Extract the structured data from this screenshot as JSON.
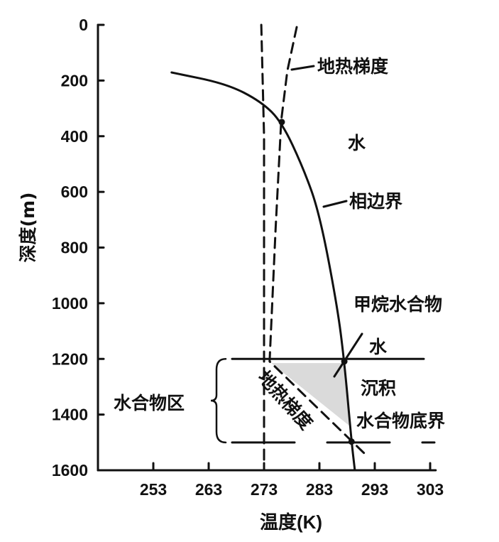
{
  "chart_data": {
    "type": "line",
    "title": "",
    "xlabel": "温度(K)",
    "ylabel": "深度(m)",
    "xlim": [
      243,
      304
    ],
    "ylim": [
      0,
      1600
    ],
    "y_inverted": true,
    "x_ticks": [
      253,
      263,
      273,
      283,
      293,
      303
    ],
    "x_tick_labels": [
      "253",
      "263",
      "273",
      "283",
      "293",
      "303"
    ],
    "y_ticks": [
      0,
      200,
      400,
      600,
      800,
      1000,
      1200,
      1400,
      1600
    ],
    "y_tick_labels": [
      "0",
      "200",
      "400",
      "600",
      "800",
      "1000",
      "1200",
      "1400",
      "1600"
    ],
    "grid": false,
    "series": [
      {
        "name": "相边界",
        "style": "solid",
        "x": [
          256.3,
          266.3,
          272.5,
          276.2,
          280.1,
          283.0,
          286.2,
          287.5,
          288.8,
          289.4
        ],
        "y": [
          171,
          212,
          276,
          349,
          515,
          676,
          1008,
          1209,
          1497,
          1600
        ]
      },
      {
        "name": "地热梯度",
        "style": "dashed",
        "x": [
          278.9,
          277.2,
          276.1,
          275.1,
          274.0,
          291.3
        ],
        "y": [
          8,
          166,
          344,
          727,
          1209,
          1543
        ]
      },
      {
        "name": "273K",
        "style": "dashed",
        "x": [
          272.5,
          273,
          273
        ],
        "y": [
          0,
          400,
          1600
        ]
      }
    ],
    "horizontal_lines": [
      {
        "name": "海底",
        "y": 1200,
        "style": "solid"
      },
      {
        "name": "水合物底界",
        "y": 1500,
        "style": "dashed"
      }
    ],
    "intersection_points": [
      {
        "x": 276.2,
        "y": 349
      },
      {
        "x": 287.5,
        "y": 1209
      },
      {
        "x": 288.8,
        "y": 1497
      }
    ],
    "annotations": {
      "geothermal_upper": "地热梯度",
      "water_upper": "水",
      "phase_boundary": "相边界",
      "methane_hydrate": "甲烷水合物",
      "water_lower": "水",
      "sediment": "沉积",
      "hydrate_base": "水合物底界",
      "hydrate_zone": "水合物区",
      "geothermal_lower": "地热梯度"
    }
  }
}
